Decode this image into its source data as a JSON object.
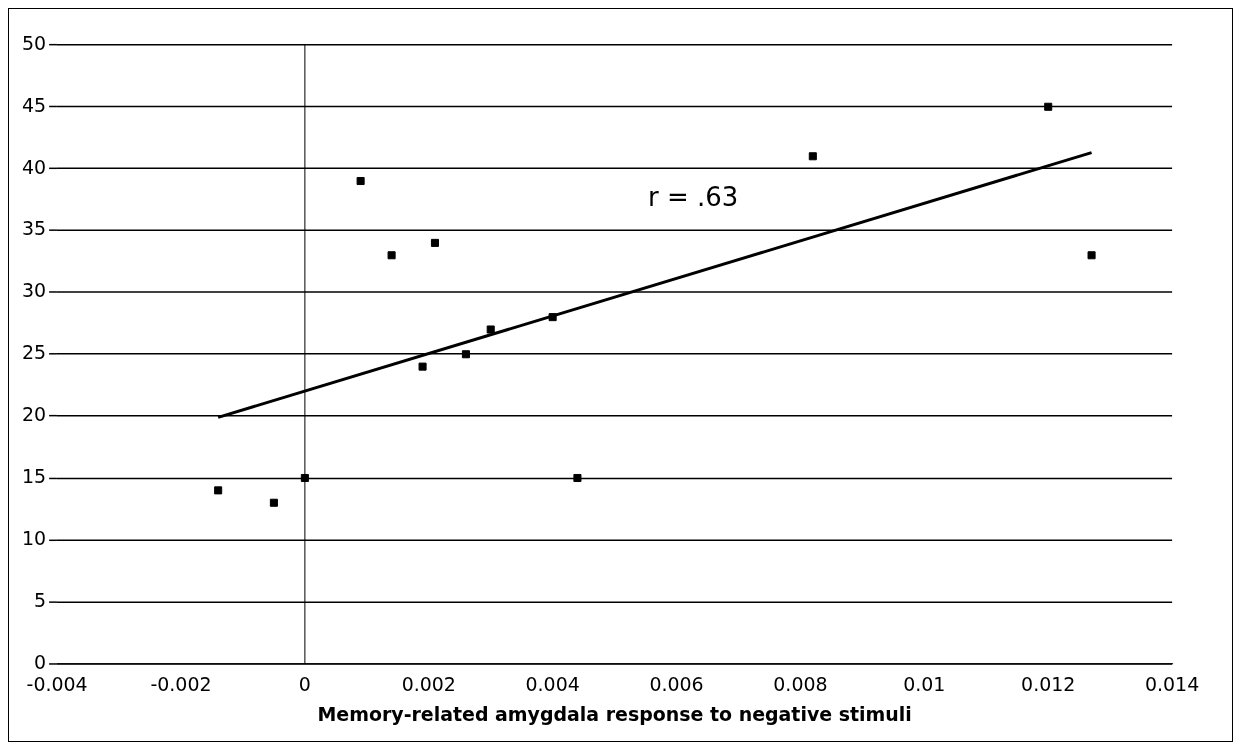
{
  "chart_data": {
    "type": "scatter",
    "xlabel": "Memory-related amygdala response to negative stimuli",
    "xlim": [
      -0.004,
      0.014
    ],
    "xticks": [
      -0.004,
      -0.002,
      0,
      0.002,
      0.004,
      0.006,
      0.008,
      0.01,
      0.012,
      0.014
    ],
    "ylim": [
      0,
      50
    ],
    "yticks": [
      0,
      5,
      10,
      15,
      20,
      25,
      30,
      35,
      40,
      45,
      50
    ],
    "grid": "y",
    "legend": false,
    "marker": "square",
    "ref_lines": [
      {
        "axis": "x",
        "value": 0,
        "color": "#000000"
      }
    ],
    "annotations": [
      "r = .63"
    ],
    "series": [
      {
        "color": "#000000",
        "x": [
          -0.0014,
          -0.0005,
          0,
          0.0009,
          0.0014,
          0.0019,
          0.0021,
          0.0026,
          0.003,
          0.004,
          0.0044,
          0.0082,
          0.012,
          0.0127
        ],
        "values": [
          14,
          13,
          15,
          39,
          33,
          24,
          34,
          25,
          27,
          28,
          15,
          41,
          45,
          33
        ]
      },
      {
        "type": "line",
        "color": "#000000",
        "x": [
          -0.0014,
          0.0127
        ],
        "values": [
          19.9,
          41.3
        ],
        "marker": "none"
      }
    ]
  }
}
